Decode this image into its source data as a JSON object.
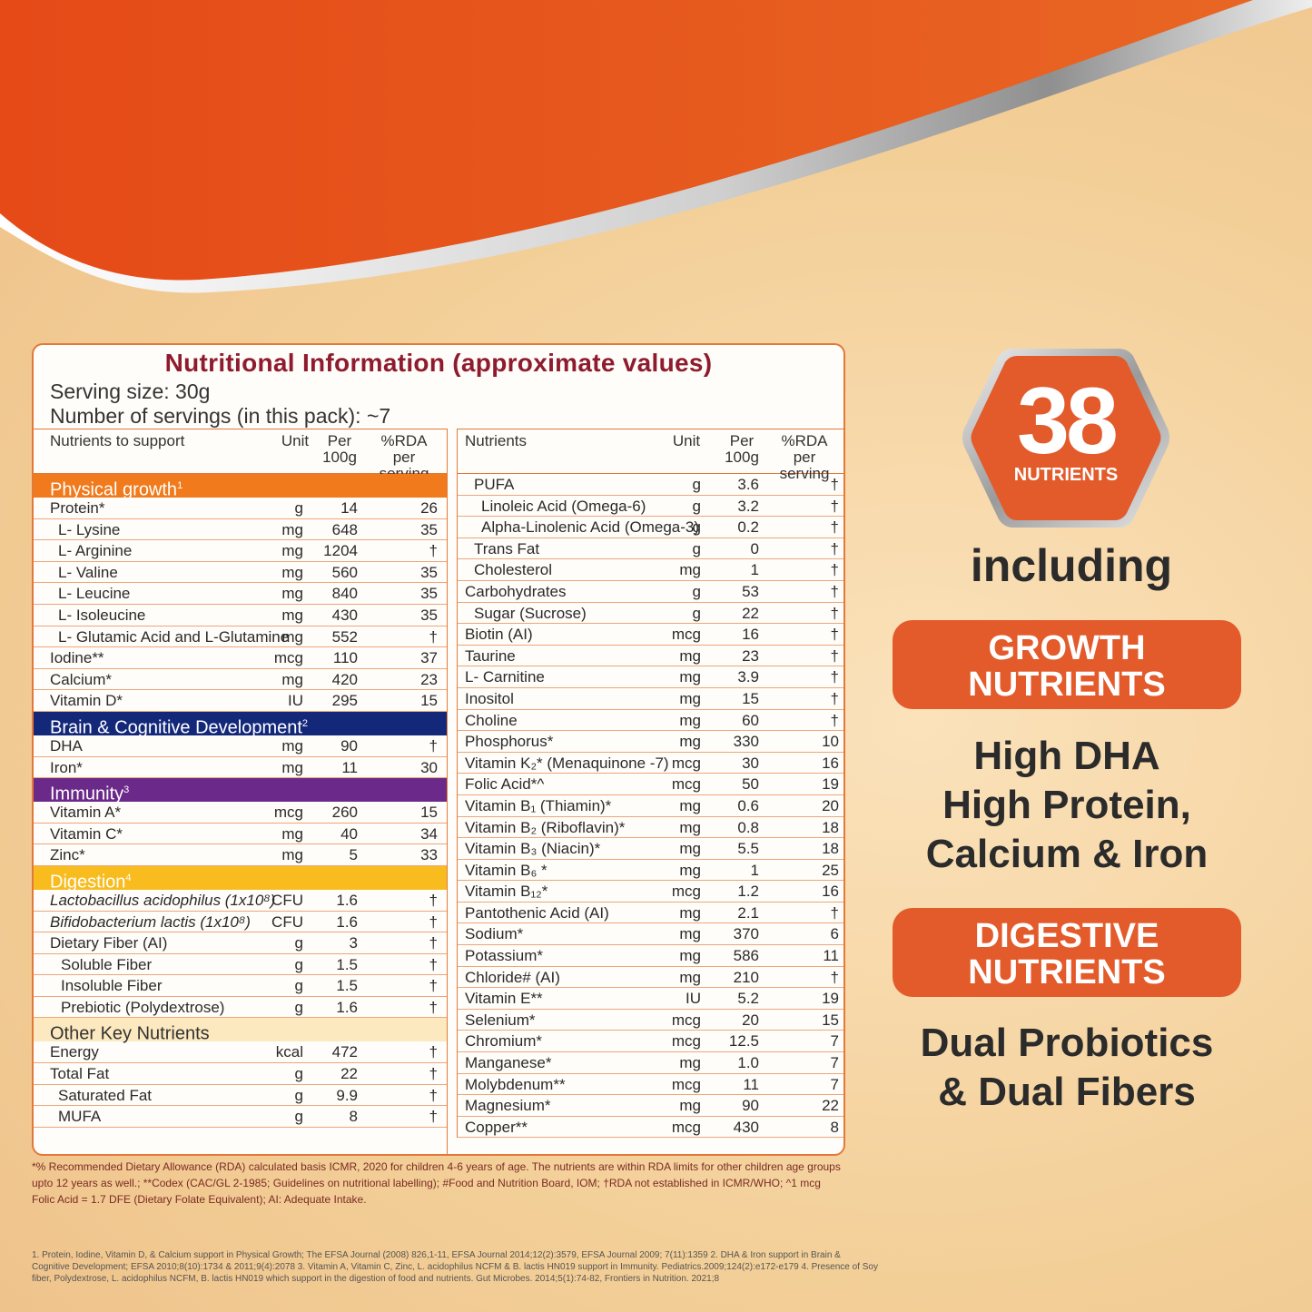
{
  "colors": {
    "orange": "#e35a2b",
    "navy": "#14287a",
    "purple": "#6b2a8a",
    "yellow": "#f9bc1f",
    "title": "#8e1b2e"
  },
  "panel": {
    "title": "Nutritional Information (approximate values)",
    "serving": "Serving size: 30g",
    "servings": "Number of servings (in this pack): ~7"
  },
  "left": {
    "headers": {
      "n": "Nutrients to support",
      "u": "Unit",
      "v1": "Per",
      "v2": "100g",
      "r1": "%RDA",
      "r2": "per serving"
    },
    "sections": [
      {
        "title": "Physical growth",
        "sup": "1",
        "style": "orange",
        "rows": [
          {
            "n": "Protein*",
            "u": "g",
            "v": "14",
            "r": "26",
            "i": 0
          },
          {
            "n": "L- Lysine",
            "u": "mg",
            "v": "648",
            "r": "35",
            "i": 1
          },
          {
            "n": "L- Arginine",
            "u": "mg",
            "v": "1204",
            "r": "†",
            "i": 1
          },
          {
            "n": "L- Valine",
            "u": "mg",
            "v": "560",
            "r": "35",
            "i": 1
          },
          {
            "n": "L- Leucine",
            "u": "mg",
            "v": "840",
            "r": "35",
            "i": 1
          },
          {
            "n": "L- Isoleucine",
            "u": "mg",
            "v": "430",
            "r": "35",
            "i": 1
          },
          {
            "n": "L- Glutamic Acid and L-Glutamine",
            "u": "mg",
            "v": "552",
            "r": "†",
            "i": 1
          },
          {
            "n": "Iodine**",
            "u": "mcg",
            "v": "110",
            "r": "37",
            "i": 0
          },
          {
            "n": "Calcium*",
            "u": "mg",
            "v": "420",
            "r": "23",
            "i": 0
          },
          {
            "n": "Vitamin D*",
            "u": "IU",
            "v": "295",
            "r": "15",
            "i": 0
          }
        ]
      },
      {
        "title": "Brain & Cognitive Development",
        "sup": "2",
        "style": "navy",
        "rows": [
          {
            "n": "DHA",
            "u": "mg",
            "v": "90",
            "r": "†",
            "i": 0
          },
          {
            "n": "Iron*",
            "u": "mg",
            "v": "11",
            "r": "30",
            "i": 0
          }
        ]
      },
      {
        "title": "Immunity",
        "sup": "3",
        "style": "purple",
        "rows": [
          {
            "n": "Vitamin A*",
            "u": "mcg",
            "v": "260",
            "r": "15",
            "i": 0
          },
          {
            "n": "Vitamin C*",
            "u": "mg",
            "v": "40",
            "r": "34",
            "i": 0
          },
          {
            "n": "Zinc*",
            "u": "mg",
            "v": "5",
            "r": "33",
            "i": 0
          }
        ]
      },
      {
        "title": "Digestion",
        "sup": "4",
        "style": "yellow",
        "rows": [
          {
            "n": "Lactobacillus acidophilus (1x10⁸)",
            "u": "CFU",
            "v": "1.6",
            "r": "†",
            "i": 0
          },
          {
            "n": "Bifidobacterium lactis (1x10⁸)",
            "u": "CFU",
            "v": "1.6",
            "r": "†",
            "i": 0
          },
          {
            "n": "Dietary Fiber (AI)",
            "u": "g",
            "v": "3",
            "r": "†",
            "i": 0
          },
          {
            "n": "Soluble Fiber",
            "u": "g",
            "v": "1.5",
            "r": "†",
            "i": 2
          },
          {
            "n": "Insoluble Fiber",
            "u": "g",
            "v": "1.5",
            "r": "†",
            "i": 2
          },
          {
            "n": "Prebiotic (Polydextrose)",
            "u": "g",
            "v": "1.6",
            "r": "†",
            "i": 2
          }
        ]
      },
      {
        "title": "Other Key Nutrients",
        "sup": "",
        "style": "cream",
        "rows": [
          {
            "n": "Energy",
            "u": "kcal",
            "v": "472",
            "r": "†",
            "i": 0
          },
          {
            "n": "Total Fat",
            "u": "g",
            "v": "22",
            "r": "†",
            "i": 0
          },
          {
            "n": "Saturated Fat",
            "u": "g",
            "v": "9.9",
            "r": "†",
            "i": 1
          },
          {
            "n": "MUFA",
            "u": "g",
            "v": "8",
            "r": "†",
            "i": 1
          }
        ]
      }
    ]
  },
  "right": {
    "headers": {
      "n": "Nutrients",
      "u": "Unit",
      "v1": "Per",
      "v2": "100g",
      "r1": "%RDA",
      "r2": "per serving"
    },
    "rows": [
      {
        "n": "PUFA",
        "u": "g",
        "v": "3.6",
        "r": "†",
        "i": 1
      },
      {
        "n": "Linoleic Acid (Omega-6)",
        "u": "g",
        "v": "3.2",
        "r": "†",
        "i": 2
      },
      {
        "n": "Alpha-Linolenic Acid (Omega-3)",
        "u": "g",
        "v": "0.2",
        "r": "†",
        "i": 2
      },
      {
        "n": "Trans Fat",
        "u": "g",
        "v": "0",
        "r": "†",
        "i": 1
      },
      {
        "n": "Cholesterol",
        "u": "mg",
        "v": "1",
        "r": "†",
        "i": 1
      },
      {
        "n": "Carbohydrates",
        "u": "g",
        "v": "53",
        "r": "†",
        "i": 0
      },
      {
        "n": "Sugar (Sucrose)",
        "u": "g",
        "v": "22",
        "r": "†",
        "i": 1
      },
      {
        "n": "Biotin (AI)",
        "u": "mcg",
        "v": "16",
        "r": "†",
        "i": 0
      },
      {
        "n": "Taurine",
        "u": "mg",
        "v": "23",
        "r": "†",
        "i": 0
      },
      {
        "n": "L- Carnitine",
        "u": "mg",
        "v": "3.9",
        "r": "†",
        "i": 0
      },
      {
        "n": "Inositol",
        "u": "mg",
        "v": "15",
        "r": "†",
        "i": 0
      },
      {
        "n": "Choline",
        "u": "mg",
        "v": "60",
        "r": "†",
        "i": 0
      },
      {
        "n": "Phosphorus*",
        "u": "mg",
        "v": "330",
        "r": "10",
        "i": 0
      },
      {
        "n": "Vitamin K₂* (Menaquinone -7)",
        "u": "mcg",
        "v": "30",
        "r": "16",
        "i": 0
      },
      {
        "n": "Folic Acid*^",
        "u": "mcg",
        "v": "50",
        "r": "19",
        "i": 0
      },
      {
        "n": "Vitamin B₁ (Thiamin)*",
        "u": "mg",
        "v": "0.6",
        "r": "20",
        "i": 0
      },
      {
        "n": "Vitamin B₂ (Riboflavin)*",
        "u": "mg",
        "v": "0.8",
        "r": "18",
        "i": 0
      },
      {
        "n": "Vitamin B₃ (Niacin)*",
        "u": "mg",
        "v": "5.5",
        "r": "18",
        "i": 0
      },
      {
        "n": "Vitamin B₆ *",
        "u": "mg",
        "v": "1",
        "r": "25",
        "i": 0
      },
      {
        "n": "Vitamin B₁₂*",
        "u": "mcg",
        "v": "1.2",
        "r": "16",
        "i": 0
      },
      {
        "n": "Pantothenic Acid (AI)",
        "u": "mg",
        "v": "2.1",
        "r": "†",
        "i": 0
      },
      {
        "n": "Sodium*",
        "u": "mg",
        "v": "370",
        "r": "6",
        "i": 0
      },
      {
        "n": "Potassium*",
        "u": "mg",
        "v": "586",
        "r": "11",
        "i": 0
      },
      {
        "n": "Chloride# (AI)",
        "u": "mg",
        "v": "210",
        "r": "†",
        "i": 0
      },
      {
        "n": "Vitamin E**",
        "u": "IU",
        "v": "5.2",
        "r": "19",
        "i": 0
      },
      {
        "n": "Selenium*",
        "u": "mcg",
        "v": "20",
        "r": "15",
        "i": 0
      },
      {
        "n": "Chromium*",
        "u": "mcg",
        "v": "12.5",
        "r": "7",
        "i": 0
      },
      {
        "n": "Manganese*",
        "u": "mg",
        "v": "1.0",
        "r": "7",
        "i": 0
      },
      {
        "n": "Molybdenum**",
        "u": "mcg",
        "v": "11",
        "r": "7",
        "i": 0
      },
      {
        "n": "Magnesium*",
        "u": "mg",
        "v": "90",
        "r": "22",
        "i": 0
      },
      {
        "n": "Copper**",
        "u": "mcg",
        "v": "430",
        "r": "8",
        "i": 0
      }
    ]
  },
  "footnote": "*% Recommended Dietary Allowance (RDA) calculated basis ICMR, 2020 for children 4-6 years of age. The nutrients are within RDA limits for other children age groups upto 12 years as well.; **Codex (CAC/GL 2-1985; Guidelines on nutritional labelling); #Food and Nutrition Board, IOM; †RDA not established in ICMR/WHO; ^1 mcg Folic Acid = 1.7 DFE (Dietary Folate Equivalent); AI: Adequate Intake.",
  "references": "1. Protein, Iodine, Vitamin D, & Calcium support in Physical Growth; The EFSA Journal (2008) 826,1-11, EFSA Journal 2014;12(2):3579, EFSA Journal 2009; 7(11):1359 2. DHA & Iron support in Brain & Cognitive Development; EFSA 2010;8(10):1734 & 2011;9(4):2078 3. Vitamin A, Vitamin C, Zinc, L. acidophilus NCFM & B. lactis HN019 support in Immunity. Pediatrics.2009;124(2):e172-e179 4. Presence of Soy fiber, Polydextrose, L. acidophilus NCFM, B. lactis HN019 which support in the digestion of food and nutrients. Gut Microbes. 2014;5(1):74-82, Frontiers in Nutrition. 2021;8",
  "promo": {
    "count": "38",
    "count_label": "NUTRIENTS",
    "including": "including",
    "pill1_l1": "GROWTH",
    "pill1_l2": "NUTRIENTS",
    "claim1_l1": "High DHA",
    "claim1_l2": "High Protein,",
    "claim1_l3": "Calcium & Iron",
    "pill2_l1": "DIGESTIVE",
    "pill2_l2": "NUTRIENTS",
    "claim2_l1": "Dual Probiotics",
    "claim2_l2": "& Dual Fibers"
  }
}
